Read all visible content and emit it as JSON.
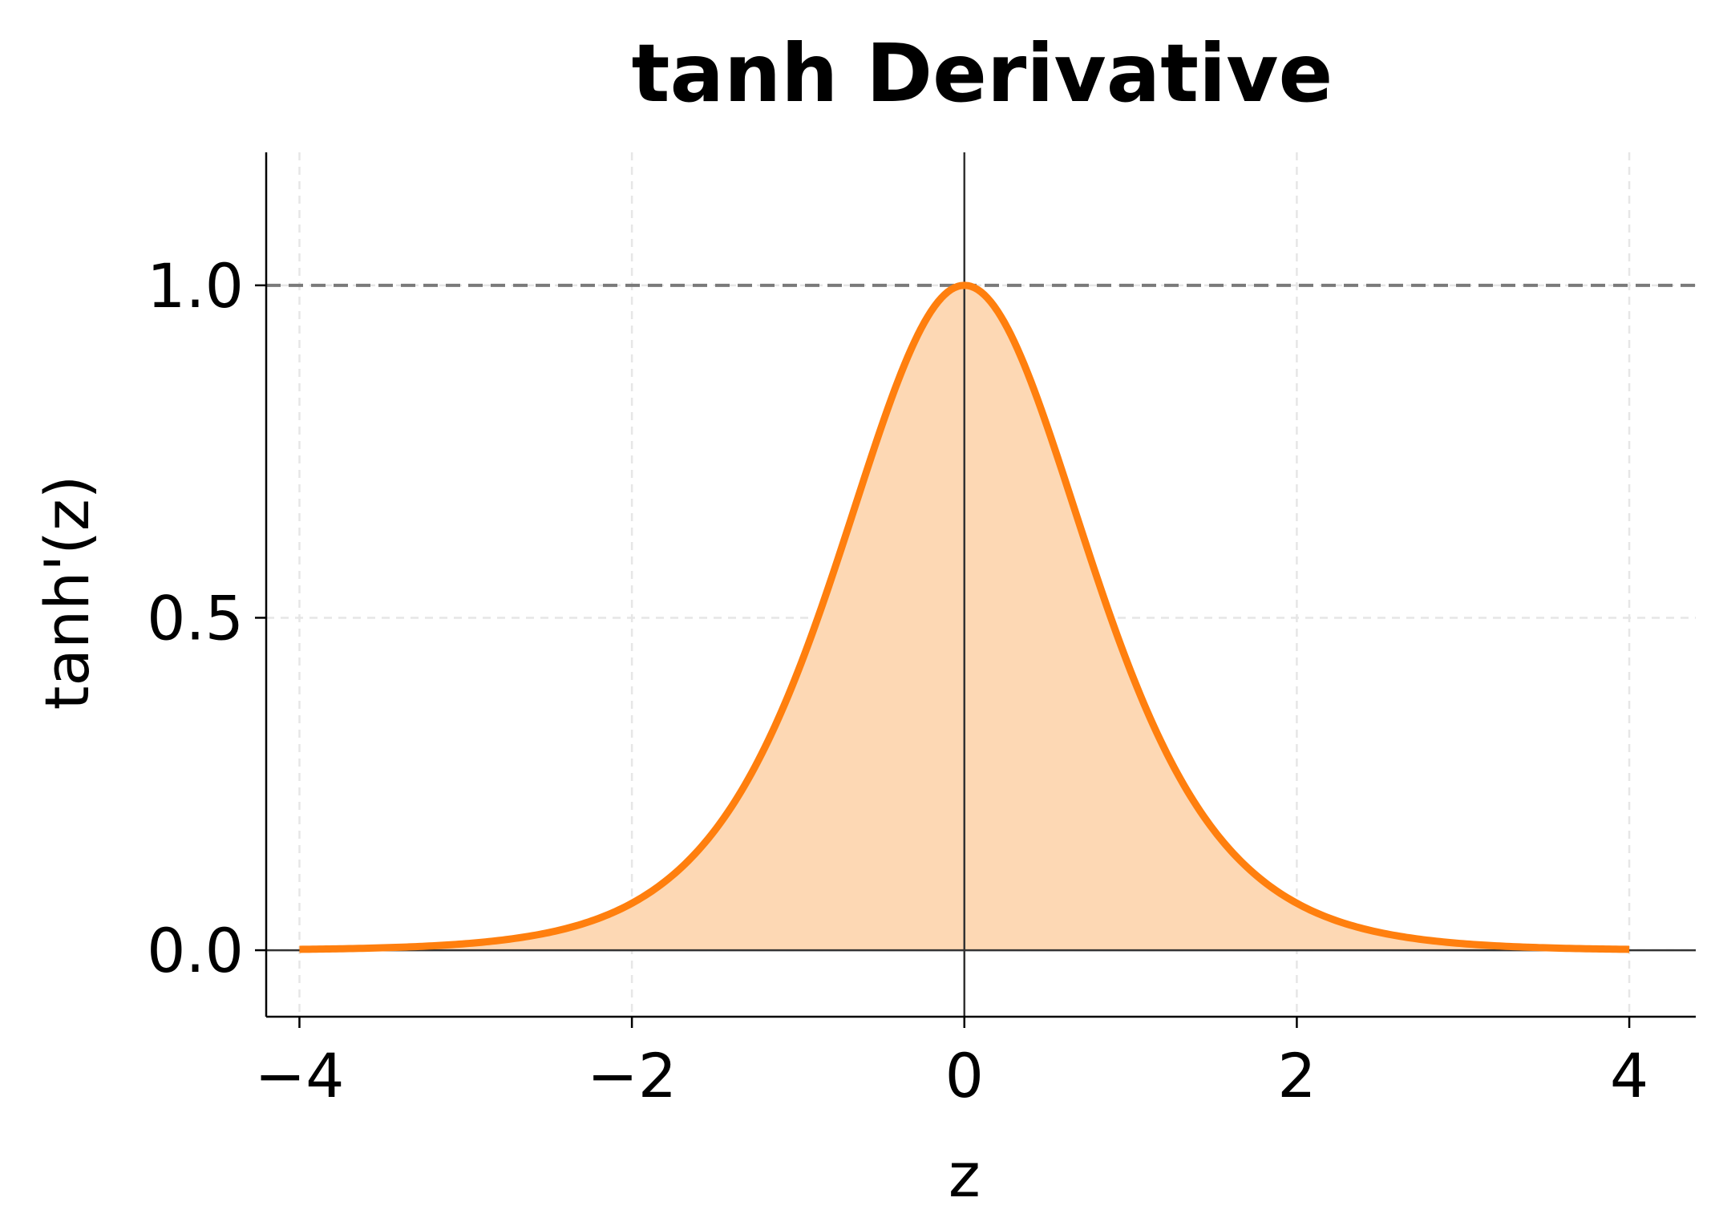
{
  "chart_data": {
    "type": "area",
    "title": "tanh Derivative",
    "xlabel": "z",
    "ylabel": "tanh'(z)",
    "xlim": [
      -4.2,
      4.4
    ],
    "ylim": [
      -0.1,
      1.2
    ],
    "x_ticks": [
      -4,
      -2,
      0,
      2,
      4
    ],
    "x_tick_labels": [
      "−4",
      "−2",
      "0",
      "2",
      "4"
    ],
    "y_ticks": [
      0.0,
      0.5,
      1.0
    ],
    "y_tick_labels": [
      "0.0",
      "0.5",
      "1.0"
    ],
    "grid": true,
    "legend": "none",
    "reference_lines": {
      "horizontal_dashed": 1.0,
      "zero_axes": true
    },
    "series": [
      {
        "function": "1 - tanh(z)^2",
        "x": [
          -4,
          -3.5,
          -3,
          -2.5,
          -2,
          -1.75,
          -1.5,
          -1.25,
          -1,
          -0.75,
          -0.5,
          -0.25,
          0,
          0.25,
          0.5,
          0.75,
          1,
          1.25,
          1.5,
          1.75,
          2,
          2.5,
          3,
          3.5,
          4
        ],
        "values": [
          0.0013,
          0.0036,
          0.0099,
          0.0266,
          0.0707,
          0.1123,
          0.1807,
          0.2868,
          0.42,
          0.5993,
          0.7864,
          0.9401,
          1.0,
          0.9401,
          0.7864,
          0.5993,
          0.42,
          0.2868,
          0.1807,
          0.1123,
          0.0707,
          0.0266,
          0.0099,
          0.0036,
          0.0013
        ],
        "color": "#ff7f0e",
        "fill_color": "#fdd8b4"
      }
    ],
    "colors": {
      "grid": "#e6e6e6",
      "dashed_line": "#7a7a7a",
      "zero_axes": "#333333",
      "spine": "#000000"
    }
  }
}
